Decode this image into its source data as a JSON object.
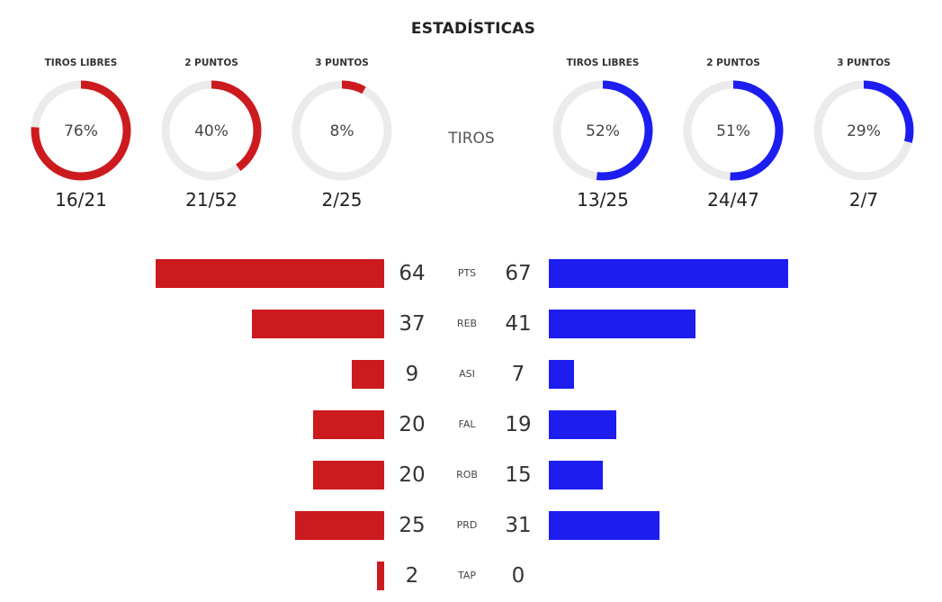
{
  "title": "ESTADÍSTICAS",
  "colors": {
    "team_a": "#cc1b1f",
    "team_b": "#1d1df0",
    "track": "#ebebeb"
  },
  "chart_data": [
    {
      "type": "donut",
      "center_label": "TIROS",
      "team_a": [
        {
          "label": "TIROS LIBRES",
          "percent_text": "76%",
          "fraction": 0.76,
          "made_text": "16/21"
        },
        {
          "label": "2 PUNTOS",
          "percent_text": "40%",
          "fraction": 0.4,
          "made_text": "21/52"
        },
        {
          "label": "3 PUNTOS",
          "percent_text": "8%",
          "fraction": 0.08,
          "made_text": "2/25"
        }
      ],
      "team_b": [
        {
          "label": "TIROS LIBRES",
          "percent_text": "52%",
          "fraction": 0.52,
          "made_text": "13/25"
        },
        {
          "label": "2 PUNTOS",
          "percent_text": "51%",
          "fraction": 0.51,
          "made_text": "24/47"
        },
        {
          "label": "3 PUNTOS",
          "percent_text": "29%",
          "fraction": 0.29,
          "made_text": "2/7"
        }
      ]
    },
    {
      "type": "bar",
      "orientation": "diverging-horizontal",
      "max_value": 67,
      "rows": [
        {
          "stat": "PTS",
          "a": 64,
          "b": 67
        },
        {
          "stat": "REB",
          "a": 37,
          "b": 41
        },
        {
          "stat": "ASI",
          "a": 9,
          "b": 7
        },
        {
          "stat": "FAL",
          "a": 20,
          "b": 19
        },
        {
          "stat": "ROB",
          "a": 20,
          "b": 15
        },
        {
          "stat": "PRD",
          "a": 25,
          "b": 31
        },
        {
          "stat": "TAP",
          "a": 2,
          "b": 0
        }
      ]
    }
  ]
}
